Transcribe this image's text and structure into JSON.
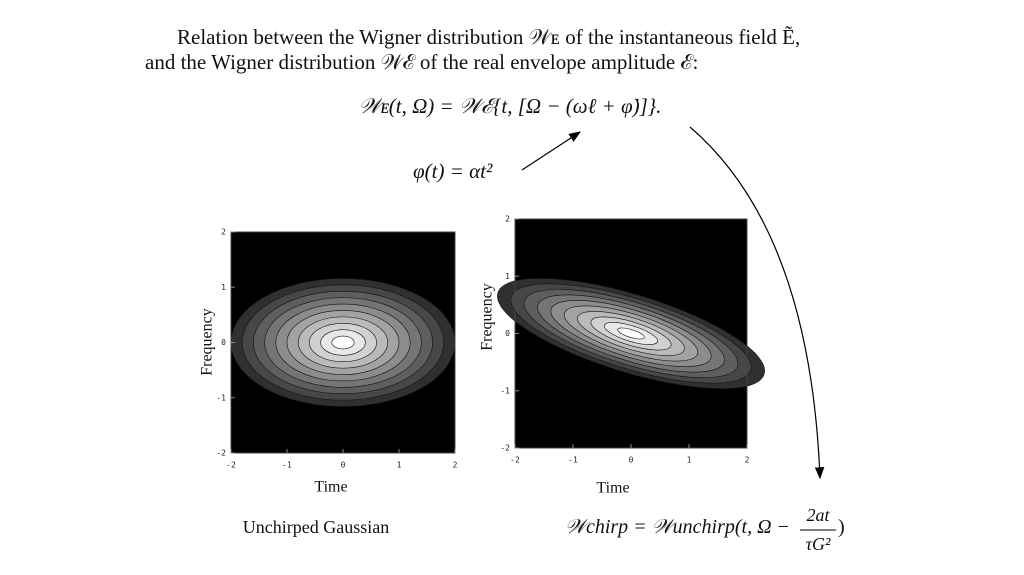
{
  "intro": {
    "line1": "Relation between the Wigner distribution 𝒲ᴇ of the instantaneous field Ẽ,",
    "line2": "and the Wigner distribution 𝒲ℰ of the real envelope amplitude ℰ:"
  },
  "equation": "𝒲ᴇ(t, Ω) = 𝒲ℰ{t, [Ω − (ωℓ + φ̇)]}.",
  "phase": "φ(t) = αt²",
  "plots": [
    {
      "xlabel": "Time",
      "ylabel": "Frequency",
      "xlim": [
        -2,
        2
      ],
      "ylim": [
        -2,
        2
      ],
      "xticks": [
        -2,
        -1,
        0,
        1,
        2
      ],
      "yticks": [
        -2,
        -1,
        0,
        1,
        2
      ],
      "caption": "Unchirped Gaussian"
    },
    {
      "xlabel": "Time",
      "ylabel": "Frequency",
      "xlim": [
        -2,
        2
      ],
      "ylim": [
        -2,
        2
      ],
      "xticks": [
        -2,
        -1,
        0,
        1,
        2
      ],
      "yticks": [
        -2,
        -1,
        0,
        1,
        2
      ],
      "formula": {
        "lhs": "𝒲chirp = 𝒲unchirp(t, Ω −",
        "numerator": "2at",
        "denominator": "τG²",
        "close": ")"
      }
    }
  ]
}
